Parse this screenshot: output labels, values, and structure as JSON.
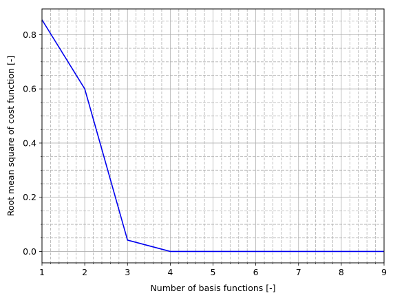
{
  "chart_data": {
    "type": "line",
    "title": "",
    "xlabel": "Number of basis functions [-]",
    "ylabel": "Root mean square of cost function [-]",
    "xlim": [
      1,
      9
    ],
    "ylim": [
      -0.042,
      0.895
    ],
    "xticks": [
      1,
      2,
      3,
      4,
      5,
      6,
      7,
      8,
      9
    ],
    "xtick_labels": [
      "1",
      "2",
      "3",
      "4",
      "5",
      "6",
      "7",
      "8",
      "9"
    ],
    "yticks": [
      0.0,
      0.2,
      0.4,
      0.6,
      0.8
    ],
    "ytick_labels": [
      "0.0",
      "0.2",
      "0.4",
      "0.6",
      "0.8"
    ],
    "grid": {
      "major": true,
      "minor": true,
      "minor_style": "dashed"
    },
    "series": [
      {
        "color": "#0000ee",
        "x": [
          1,
          2,
          3,
          4,
          5,
          6,
          7,
          8,
          9
        ],
        "y": [
          0.855,
          0.6,
          0.042,
          0.0,
          0.0,
          0.0,
          0.0,
          0.0,
          0.0
        ]
      }
    ]
  }
}
